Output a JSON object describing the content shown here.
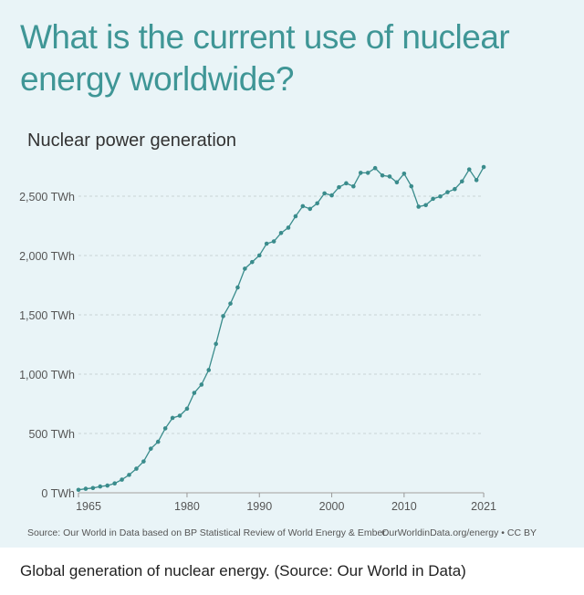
{
  "title": "What is the current use of nuclear energy worldwide?",
  "chart_data": {
    "type": "line",
    "title": "Nuclear power generation",
    "xlabel": "",
    "ylabel": "",
    "x_ticks": [
      "1965",
      "1980",
      "1990",
      "2000",
      "2010",
      "2021"
    ],
    "y_ticks": [
      "0 TWh",
      "500 TWh",
      "1,000 TWh",
      "1,500 TWh",
      "2,000 TWh",
      "2,500 TWh"
    ],
    "xlim": [
      1965,
      2021
    ],
    "ylim": [
      0,
      2750
    ],
    "grid": "horizontal dotted",
    "color": "#3a8c8c",
    "x": [
      1965,
      1966,
      1967,
      1968,
      1969,
      1970,
      1971,
      1972,
      1973,
      1974,
      1975,
      1976,
      1977,
      1978,
      1979,
      1980,
      1981,
      1982,
      1983,
      1984,
      1985,
      1986,
      1987,
      1988,
      1989,
      1990,
      1991,
      1992,
      1993,
      1994,
      1995,
      1996,
      1997,
      1998,
      1999,
      2000,
      2001,
      2002,
      2003,
      2004,
      2005,
      2006,
      2007,
      2008,
      2009,
      2010,
      2011,
      2012,
      2013,
      2014,
      2015,
      2016,
      2017,
      2018,
      2019,
      2020,
      2021
    ],
    "values": [
      25,
      34,
      40,
      53,
      61,
      79,
      111,
      151,
      203,
      264,
      372,
      430,
      543,
      631,
      650,
      709,
      842,
      912,
      1035,
      1255,
      1489,
      1595,
      1731,
      1889,
      1945,
      2001,
      2100,
      2119,
      2190,
      2235,
      2331,
      2416,
      2393,
      2440,
      2524,
      2507,
      2576,
      2609,
      2583,
      2697,
      2697,
      2737,
      2675,
      2666,
      2617,
      2690,
      2584,
      2412,
      2425,
      2478,
      2498,
      2534,
      2560,
      2625,
      2726,
      2636,
      2746
    ]
  },
  "source": "Source: Our World in Data based on BP Statistical Review of World Energy & Ember",
  "license": "OurWorldinData.org/energy • CC BY",
  "caption": "Global generation of nuclear energy. (Source: Our World in Data)"
}
